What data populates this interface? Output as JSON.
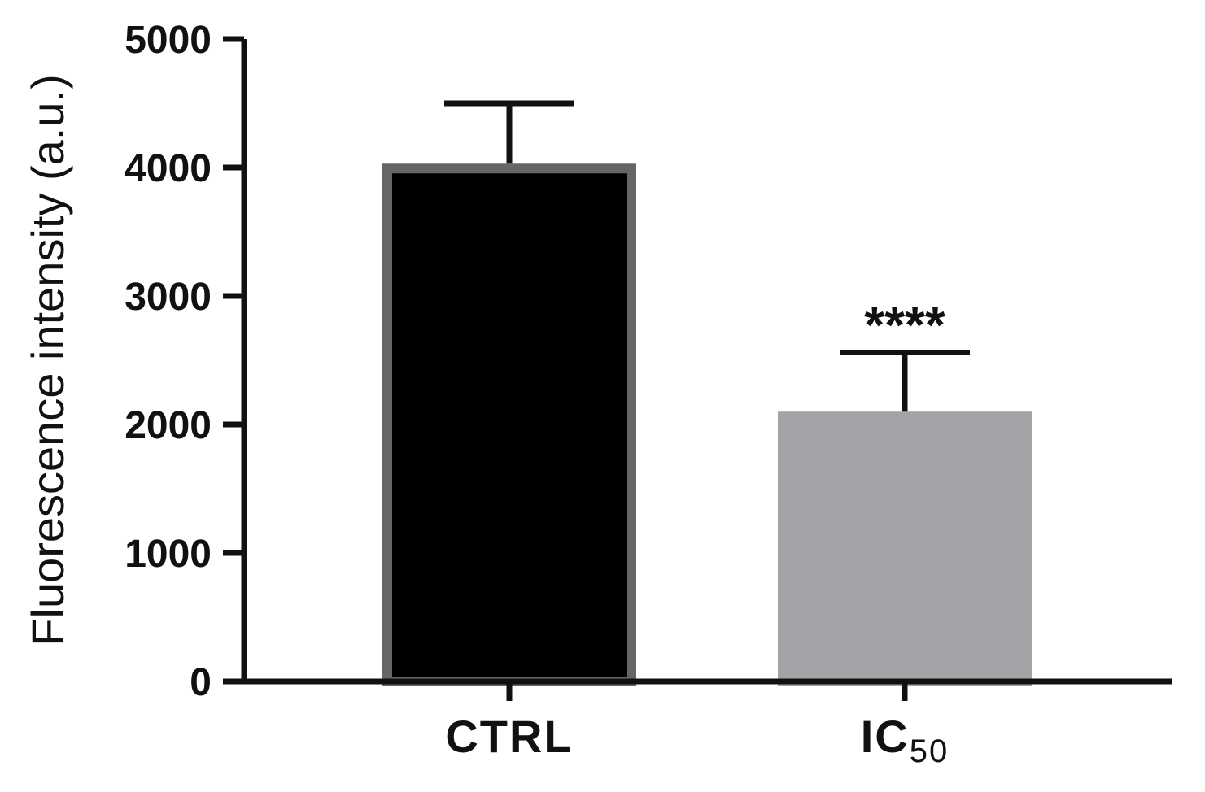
{
  "chart_data": {
    "type": "bar",
    "title": "",
    "xlabel": "",
    "ylabel": "Fluorescence intensity (a.u.)",
    "ylim": [
      0,
      5000
    ],
    "yticks": [
      0,
      1000,
      2000,
      3000,
      4000,
      5000
    ],
    "categories": [
      {
        "label": "CTRL",
        "sub": ""
      },
      {
        "label": "IC",
        "sub": "50"
      }
    ],
    "values": [
      4030,
      2100
    ],
    "errors": [
      470,
      460
    ],
    "annotations": [
      "",
      "****"
    ],
    "colors": {
      "bar_fills": [
        "#000000",
        "#a4a4a8"
      ],
      "bar_strokes": [
        "#666666",
        "#a4a4a8"
      ],
      "axis": "#111111"
    },
    "grid": false,
    "legend": "none"
  }
}
